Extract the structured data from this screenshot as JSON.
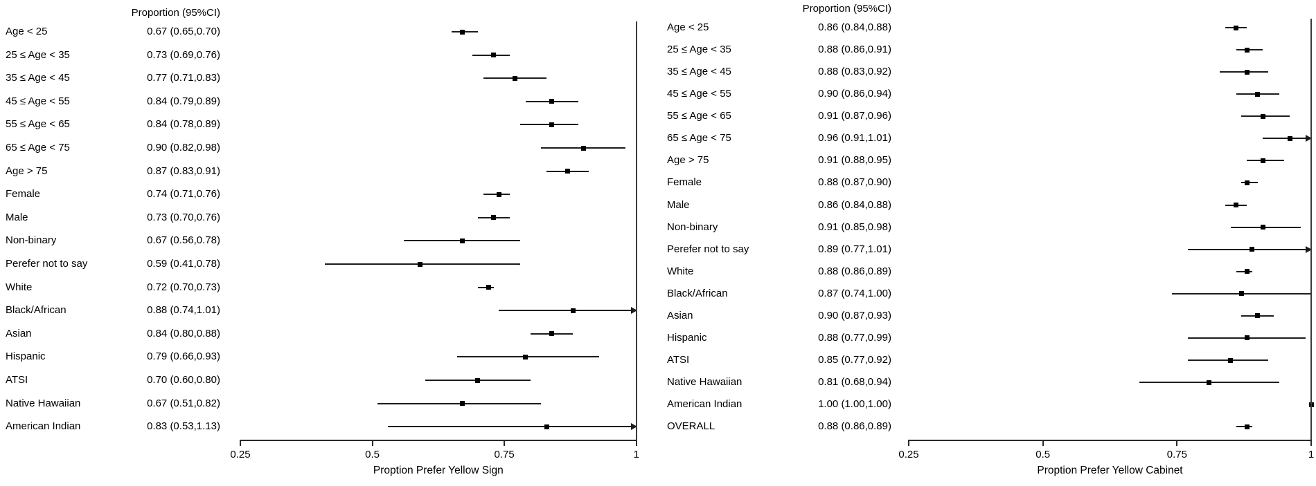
{
  "figure": {
    "background": "#ffffff",
    "text_color": "#000000",
    "line_color": "#1c1c1c",
    "reference_line_color": "#3a3a3a"
  },
  "chart_data": [
    {
      "type": "forest",
      "panel": "left",
      "column_header": "Proportion (95%CI)",
      "xlabel": "Proption Prefer Yellow Sign",
      "xlim": [
        0.25,
        1.0
      ],
      "xticks": [
        0.25,
        0.5,
        0.75,
        1
      ],
      "xtick_labels": [
        "0.25",
        "0.5",
        "0.75",
        "1"
      ],
      "reference_line": 1.0,
      "grid": false,
      "rows": [
        {
          "label": "Age < 25",
          "value_text": "0.67 (0.65,0.70)",
          "est": 0.67,
          "lo": 0.65,
          "hi": 0.7
        },
        {
          "label": "25 ≤ Age < 35",
          "value_text": "0.73 (0.69,0.76)",
          "est": 0.73,
          "lo": 0.69,
          "hi": 0.76
        },
        {
          "label": "35 ≤ Age < 45",
          "value_text": "0.77 (0.71,0.83)",
          "est": 0.77,
          "lo": 0.71,
          "hi": 0.83
        },
        {
          "label": "45 ≤ Age < 55",
          "value_text": "0.84 (0.79,0.89)",
          "est": 0.84,
          "lo": 0.79,
          "hi": 0.89
        },
        {
          "label": "55 ≤ Age < 65",
          "value_text": "0.84 (0.78,0.89)",
          "est": 0.84,
          "lo": 0.78,
          "hi": 0.89
        },
        {
          "label": "65 ≤ Age < 75",
          "value_text": "0.90 (0.82,0.98)",
          "est": 0.9,
          "lo": 0.82,
          "hi": 0.98
        },
        {
          "label": "Age > 75",
          "value_text": "0.87 (0.83,0.91)",
          "est": 0.87,
          "lo": 0.83,
          "hi": 0.91
        },
        {
          "label": "Female",
          "value_text": "0.74 (0.71,0.76)",
          "est": 0.74,
          "lo": 0.71,
          "hi": 0.76
        },
        {
          "label": "Male",
          "value_text": "0.73 (0.70,0.76)",
          "est": 0.73,
          "lo": 0.7,
          "hi": 0.76
        },
        {
          "label": "Non-binary",
          "value_text": "0.67 (0.56,0.78)",
          "est": 0.67,
          "lo": 0.56,
          "hi": 0.78
        },
        {
          "label": "Perefer not to say",
          "value_text": "0.59 (0.41,0.78)",
          "est": 0.59,
          "lo": 0.41,
          "hi": 0.78
        },
        {
          "label": "White",
          "value_text": "0.72 (0.70,0.73)",
          "est": 0.72,
          "lo": 0.7,
          "hi": 0.73
        },
        {
          "label": "Black/African",
          "value_text": "0.88 (0.74,1.01)",
          "est": 0.88,
          "lo": 0.74,
          "hi": 1.01
        },
        {
          "label": "Asian",
          "value_text": "0.84 (0.80,0.88)",
          "est": 0.84,
          "lo": 0.8,
          "hi": 0.88
        },
        {
          "label": "Hispanic",
          "value_text": "0.79 (0.66,0.93)",
          "est": 0.79,
          "lo": 0.66,
          "hi": 0.93
        },
        {
          "label": "ATSI",
          "value_text": "0.70 (0.60,0.80)",
          "est": 0.7,
          "lo": 0.6,
          "hi": 0.8
        },
        {
          "label": "Native Hawaiian",
          "value_text": "0.67 (0.51,0.82)",
          "est": 0.67,
          "lo": 0.51,
          "hi": 0.82
        },
        {
          "label": "American Indian",
          "value_text": "0.83 (0.53,1.13)",
          "est": 0.83,
          "lo": 0.53,
          "hi": 1.13
        }
      ]
    },
    {
      "type": "forest",
      "panel": "right",
      "column_header": "Proportion (95%CI)",
      "xlabel": "Proption Prefer Yellow Cabinet",
      "xlim": [
        0.25,
        1.0
      ],
      "xticks": [
        0.25,
        0.5,
        0.75,
        1
      ],
      "xtick_labels": [
        "0.25",
        "0.5",
        "0.75",
        "1"
      ],
      "reference_line": 1.0,
      "grid": false,
      "rows": [
        {
          "label": "Age < 25",
          "value_text": "0.86 (0.84,0.88)",
          "est": 0.86,
          "lo": 0.84,
          "hi": 0.88
        },
        {
          "label": "25 ≤ Age < 35",
          "value_text": "0.88 (0.86,0.91)",
          "est": 0.88,
          "lo": 0.86,
          "hi": 0.91
        },
        {
          "label": "35 ≤ Age < 45",
          "value_text": "0.88 (0.83,0.92)",
          "est": 0.88,
          "lo": 0.83,
          "hi": 0.92
        },
        {
          "label": "45 ≤ Age < 55",
          "value_text": "0.90 (0.86,0.94)",
          "est": 0.9,
          "lo": 0.86,
          "hi": 0.94
        },
        {
          "label": "55 ≤ Age < 65",
          "value_text": "0.91 (0.87,0.96)",
          "est": 0.91,
          "lo": 0.87,
          "hi": 0.96
        },
        {
          "label": "65 ≤ Age < 75",
          "value_text": "0.96 (0.91,1.01)",
          "est": 0.96,
          "lo": 0.91,
          "hi": 1.01
        },
        {
          "label": "Age > 75",
          "value_text": "0.91 (0.88,0.95)",
          "est": 0.91,
          "lo": 0.88,
          "hi": 0.95
        },
        {
          "label": "Female",
          "value_text": "0.88 (0.87,0.90)",
          "est": 0.88,
          "lo": 0.87,
          "hi": 0.9
        },
        {
          "label": "Male",
          "value_text": "0.86 (0.84,0.88)",
          "est": 0.86,
          "lo": 0.84,
          "hi": 0.88
        },
        {
          "label": "Non-binary",
          "value_text": "0.91 (0.85,0.98)",
          "est": 0.91,
          "lo": 0.85,
          "hi": 0.98
        },
        {
          "label": "Perefer not to say",
          "value_text": "0.89 (0.77,1.01)",
          "est": 0.89,
          "lo": 0.77,
          "hi": 1.01
        },
        {
          "label": "White",
          "value_text": "0.88 (0.86,0.89)",
          "est": 0.88,
          "lo": 0.86,
          "hi": 0.89
        },
        {
          "label": "Black/African",
          "value_text": "0.87 (0.74,1.00)",
          "est": 0.87,
          "lo": 0.74,
          "hi": 1.0
        },
        {
          "label": "Asian",
          "value_text": "0.90 (0.87,0.93)",
          "est": 0.9,
          "lo": 0.87,
          "hi": 0.93
        },
        {
          "label": "Hispanic",
          "value_text": "0.88 (0.77,0.99)",
          "est": 0.88,
          "lo": 0.77,
          "hi": 0.99
        },
        {
          "label": "ATSI",
          "value_text": "0.85 (0.77,0.92)",
          "est": 0.85,
          "lo": 0.77,
          "hi": 0.92
        },
        {
          "label": "Native Hawaiian",
          "value_text": "0.81 (0.68,0.94)",
          "est": 0.81,
          "lo": 0.68,
          "hi": 0.94
        },
        {
          "label": "American Indian",
          "value_text": "1.00 (1.00,1.00)",
          "est": 1.0,
          "lo": 1.0,
          "hi": 1.0
        },
        {
          "label": "OVERALL",
          "value_text": "0.88 (0.86,0.89)",
          "est": 0.88,
          "lo": 0.86,
          "hi": 0.89
        }
      ]
    }
  ]
}
